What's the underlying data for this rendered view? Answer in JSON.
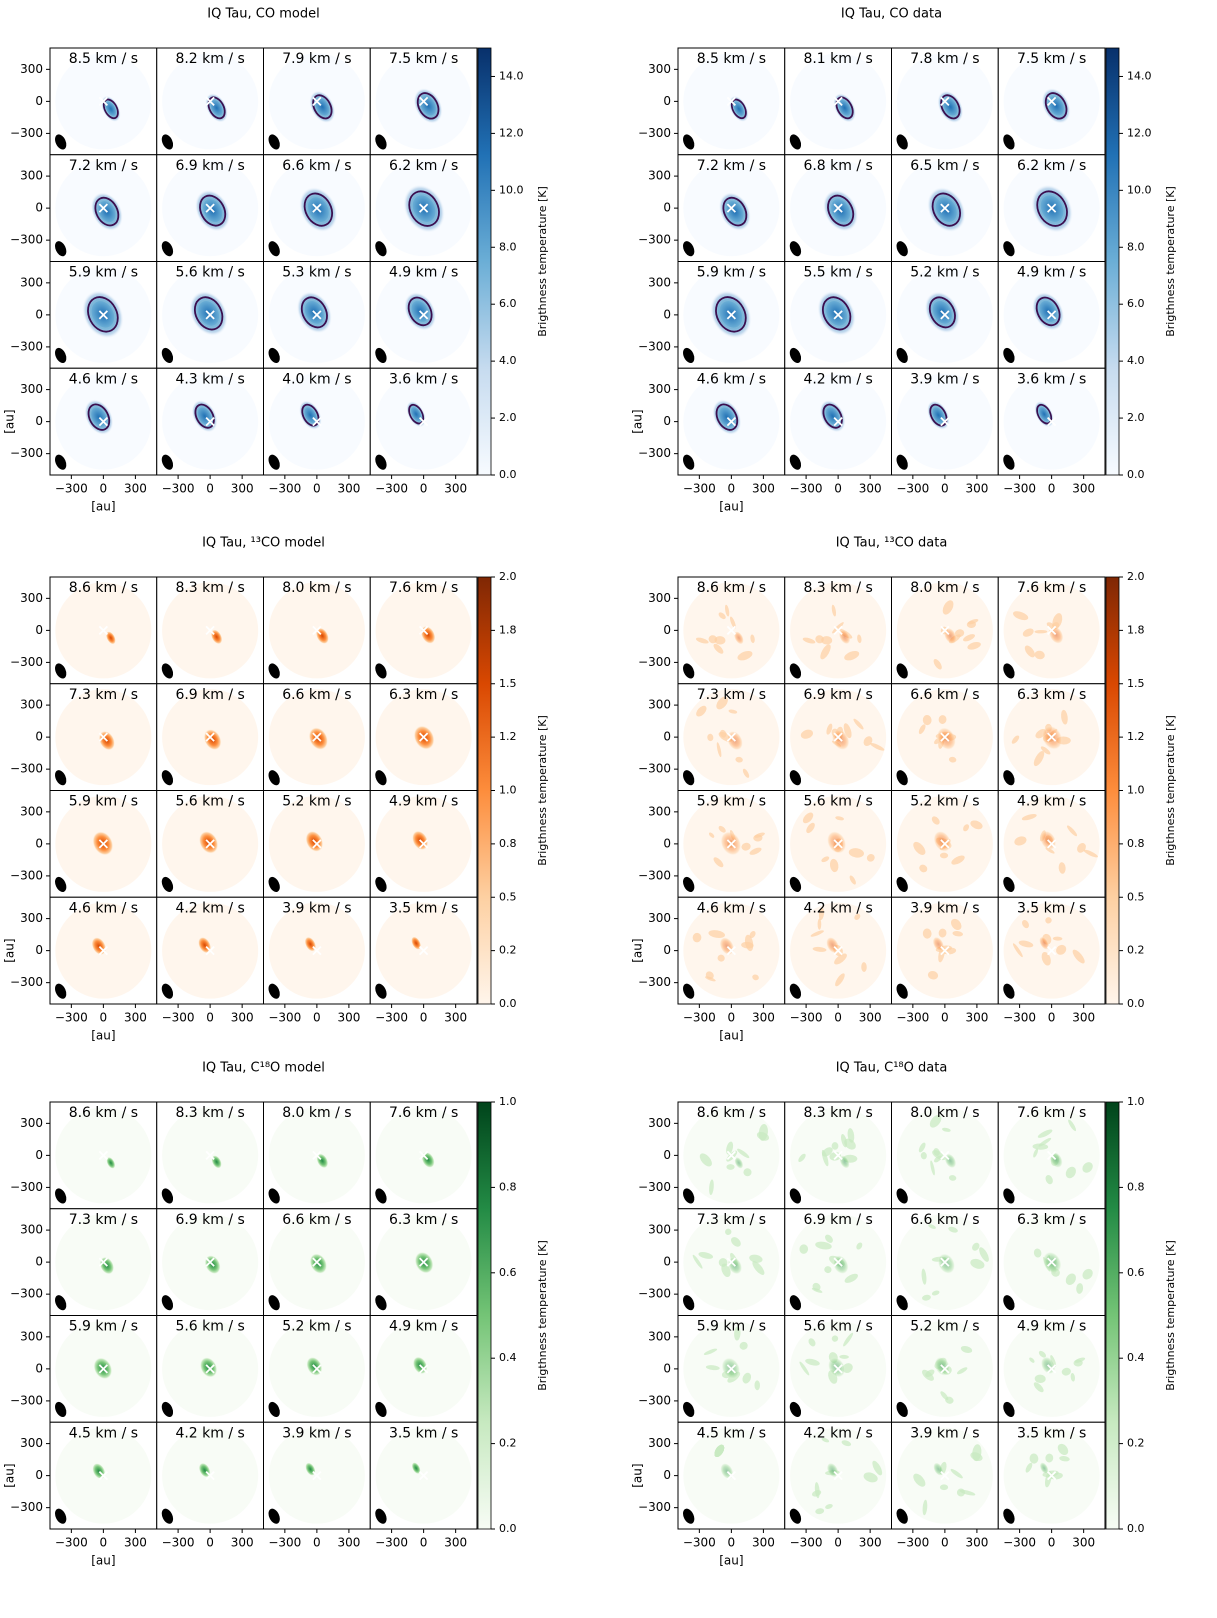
{
  "chart_data": [
    {
      "type": "channel_map",
      "title": "IQ Tau, CO model",
      "channels": [
        "8.5 km / s",
        "8.2 km / s",
        "7.9 km / s",
        "7.5 km / s",
        "7.2 km / s",
        "6.9 km / s",
        "6.6 km / s",
        "6.2 km / s",
        "5.9 km / s",
        "5.6 km / s",
        "5.3 km / s",
        "4.9 km / s",
        "4.6 km / s",
        "4.3 km / s",
        "4.0 km / s",
        "3.6 km / s"
      ],
      "xlim": [
        -500,
        500
      ],
      "ylim": [
        -500,
        500
      ],
      "xticks": [
        {
          "value": -300,
          "label": "−300"
        },
        0,
        300
      ],
      "yticks": [
        {
          "value": -300,
          "label": "−300"
        },
        0,
        300
      ],
      "xlabel": "[au]",
      "ylabel": "[au]",
      "colorbar": {
        "label": "Brigthness temperature [K]",
        "lim": [
          0,
          15
        ],
        "ticks": [
          {
            "value": 0,
            "label": "0.0"
          },
          {
            "value": 2,
            "label": "2.0"
          },
          {
            "value": 4,
            "label": "4.0"
          },
          {
            "value": 6,
            "label": "6.0"
          },
          {
            "value": 8,
            "label": "8.0"
          },
          {
            "value": 10,
            "label": "10.0"
          },
          {
            "value": 12,
            "label": "12.0"
          },
          {
            "value": 14,
            "label": "14.0"
          }
        ],
        "colors": [
          "#f7fbff",
          "#c6dbef",
          "#6baed6",
          "#2171b5",
          "#08306b"
        ]
      }
    },
    {
      "type": "channel_map",
      "title": "IQ Tau, CO data",
      "channels": [
        "8.5 km / s",
        "8.1 km / s",
        "7.8 km / s",
        "7.5 km / s",
        "7.2 km / s",
        "6.8 km / s",
        "6.5 km / s",
        "6.2 km / s",
        "5.9 km / s",
        "5.5 km / s",
        "5.2 km / s",
        "4.9 km / s",
        "4.6 km / s",
        "4.2 km / s",
        "3.9 km / s",
        "3.6 km / s"
      ],
      "xlim": [
        -500,
        500
      ],
      "ylim": [
        -500,
        500
      ],
      "xticks": [
        {
          "value": -300,
          "label": "−300"
        },
        0,
        300
      ],
      "yticks": [
        {
          "value": -300,
          "label": "−300"
        },
        0,
        300
      ],
      "xlabel": "[au]",
      "ylabel": "[au]",
      "colorbar": {
        "label": "Brigthness temperature [K]",
        "lim": [
          0,
          15
        ],
        "ticks": [
          {
            "value": 0,
            "label": "0.0"
          },
          {
            "value": 2,
            "label": "2.0"
          },
          {
            "value": 4,
            "label": "4.0"
          },
          {
            "value": 6,
            "label": "6.0"
          },
          {
            "value": 8,
            "label": "8.0"
          },
          {
            "value": 10,
            "label": "10.0"
          },
          {
            "value": 12,
            "label": "12.0"
          },
          {
            "value": 14,
            "label": "14.0"
          }
        ],
        "colors": [
          "#f7fbff",
          "#c6dbef",
          "#6baed6",
          "#2171b5",
          "#08306b"
        ]
      }
    },
    {
      "type": "channel_map",
      "title": "IQ Tau, ¹³CO model",
      "channels": [
        "8.6 km / s",
        "8.3 km / s",
        "8.0 km / s",
        "7.6 km / s",
        "7.3 km / s",
        "6.9 km / s",
        "6.6 km / s",
        "6.3 km / s",
        "5.9 km / s",
        "5.6 km / s",
        "5.2 km / s",
        "4.9 km / s",
        "4.6 km / s",
        "4.2 km / s",
        "3.9 km / s",
        "3.5 km / s"
      ],
      "xlim": [
        -500,
        500
      ],
      "ylim": [
        -500,
        500
      ],
      "xticks": [
        {
          "value": -300,
          "label": "−300"
        },
        0,
        300
      ],
      "yticks": [
        {
          "value": -300,
          "label": "−300"
        },
        0,
        300
      ],
      "xlabel": "[au]",
      "ylabel": "[au]",
      "colorbar": {
        "label": "Brigthness temperature [K]",
        "lim": [
          0,
          2
        ],
        "ticks": [
          {
            "value": 0,
            "label": "0.0"
          },
          {
            "value": 0.25,
            "label": "0.2"
          },
          {
            "value": 0.5,
            "label": "0.5"
          },
          {
            "value": 0.75,
            "label": "0.8"
          },
          {
            "value": 1,
            "label": "1.0"
          },
          {
            "value": 1.25,
            "label": "1.2"
          },
          {
            "value": 1.5,
            "label": "1.5"
          },
          {
            "value": 1.75,
            "label": "1.8"
          },
          {
            "value": 2,
            "label": "2.0"
          }
        ],
        "colors": [
          "#fff5eb",
          "#fdd0a2",
          "#fd8d3c",
          "#d94801",
          "#7f2704"
        ]
      }
    },
    {
      "type": "channel_map",
      "title": "IQ Tau, ¹³CO data",
      "channels": [
        "8.6 km / s",
        "8.3 km / s",
        "8.0 km / s",
        "7.6 km / s",
        "7.3 km / s",
        "6.9 km / s",
        "6.6 km / s",
        "6.3 km / s",
        "5.9 km / s",
        "5.6 km / s",
        "5.2 km / s",
        "4.9 km / s",
        "4.6 km / s",
        "4.2 km / s",
        "3.9 km / s",
        "3.5 km / s"
      ],
      "xlim": [
        -500,
        500
      ],
      "ylim": [
        -500,
        500
      ],
      "xticks": [
        {
          "value": -300,
          "label": "−300"
        },
        0,
        300
      ],
      "yticks": [
        {
          "value": -300,
          "label": "−300"
        },
        0,
        300
      ],
      "xlabel": "[au]",
      "ylabel": "[au]",
      "colorbar": {
        "label": "Brigthness temperature [K]",
        "lim": [
          0,
          2
        ],
        "ticks": [
          {
            "value": 0,
            "label": "0.0"
          },
          {
            "value": 0.25,
            "label": "0.2"
          },
          {
            "value": 0.5,
            "label": "0.5"
          },
          {
            "value": 0.75,
            "label": "0.8"
          },
          {
            "value": 1,
            "label": "1.0"
          },
          {
            "value": 1.25,
            "label": "1.2"
          },
          {
            "value": 1.5,
            "label": "1.5"
          },
          {
            "value": 1.75,
            "label": "1.8"
          },
          {
            "value": 2,
            "label": "2.0"
          }
        ],
        "colors": [
          "#fff5eb",
          "#fdd0a2",
          "#fd8d3c",
          "#d94801",
          "#7f2704"
        ]
      }
    },
    {
      "type": "channel_map",
      "title": "IQ Tau, C¹⁸O model",
      "channels": [
        "8.6 km / s",
        "8.3 km / s",
        "8.0 km / s",
        "7.6 km / s",
        "7.3 km / s",
        "6.9 km / s",
        "6.6 km / s",
        "6.3 km / s",
        "5.9 km / s",
        "5.6 km / s",
        "5.2 km / s",
        "4.9 km / s",
        "4.5 km / s",
        "4.2 km / s",
        "3.9 km / s",
        "3.5 km / s"
      ],
      "xlim": [
        -500,
        500
      ],
      "ylim": [
        -500,
        500
      ],
      "xticks": [
        {
          "value": -300,
          "label": "−300"
        },
        0,
        300
      ],
      "yticks": [
        {
          "value": -300,
          "label": "−300"
        },
        0,
        300
      ],
      "xlabel": "[au]",
      "ylabel": "[au]",
      "colorbar": {
        "label": "Brigthness temperature [K]",
        "lim": [
          0,
          1
        ],
        "ticks": [
          {
            "value": 0,
            "label": "0.0"
          },
          {
            "value": 0.2,
            "label": "0.2"
          },
          {
            "value": 0.4,
            "label": "0.4"
          },
          {
            "value": 0.6,
            "label": "0.6"
          },
          {
            "value": 0.8,
            "label": "0.8"
          },
          {
            "value": 1,
            "label": "1.0"
          }
        ],
        "colors": [
          "#f7fcf5",
          "#c7e9c0",
          "#74c476",
          "#238b45",
          "#00441b"
        ]
      }
    },
    {
      "type": "channel_map",
      "title": "IQ Tau, C¹⁸O data",
      "channels": [
        "8.6 km / s",
        "8.3 km / s",
        "8.0 km / s",
        "7.6 km / s",
        "7.3 km / s",
        "6.9 km / s",
        "6.6 km / s",
        "6.3 km / s",
        "5.9 km / s",
        "5.6 km / s",
        "5.2 km / s",
        "4.9 km / s",
        "4.5 km / s",
        "4.2 km / s",
        "3.9 km / s",
        "3.5 km / s"
      ],
      "xlim": [
        -500,
        500
      ],
      "ylim": [
        -500,
        500
      ],
      "xticks": [
        {
          "value": -300,
          "label": "−300"
        },
        0,
        300
      ],
      "yticks": [
        {
          "value": -300,
          "label": "−300"
        },
        0,
        300
      ],
      "xlabel": "[au]",
      "ylabel": "[au]",
      "colorbar": {
        "label": "Brigthness temperature [K]",
        "lim": [
          0,
          1
        ],
        "ticks": [
          {
            "value": 0,
            "label": "0.0"
          },
          {
            "value": 0.2,
            "label": "0.2"
          },
          {
            "value": 0.4,
            "label": "0.4"
          },
          {
            "value": 0.6,
            "label": "0.6"
          },
          {
            "value": 0.8,
            "label": "0.8"
          },
          {
            "value": 1,
            "label": "1.0"
          }
        ],
        "colors": [
          "#f7fcf5",
          "#c7e9c0",
          "#74c476",
          "#238b45",
          "#00441b"
        ]
      }
    }
  ]
}
